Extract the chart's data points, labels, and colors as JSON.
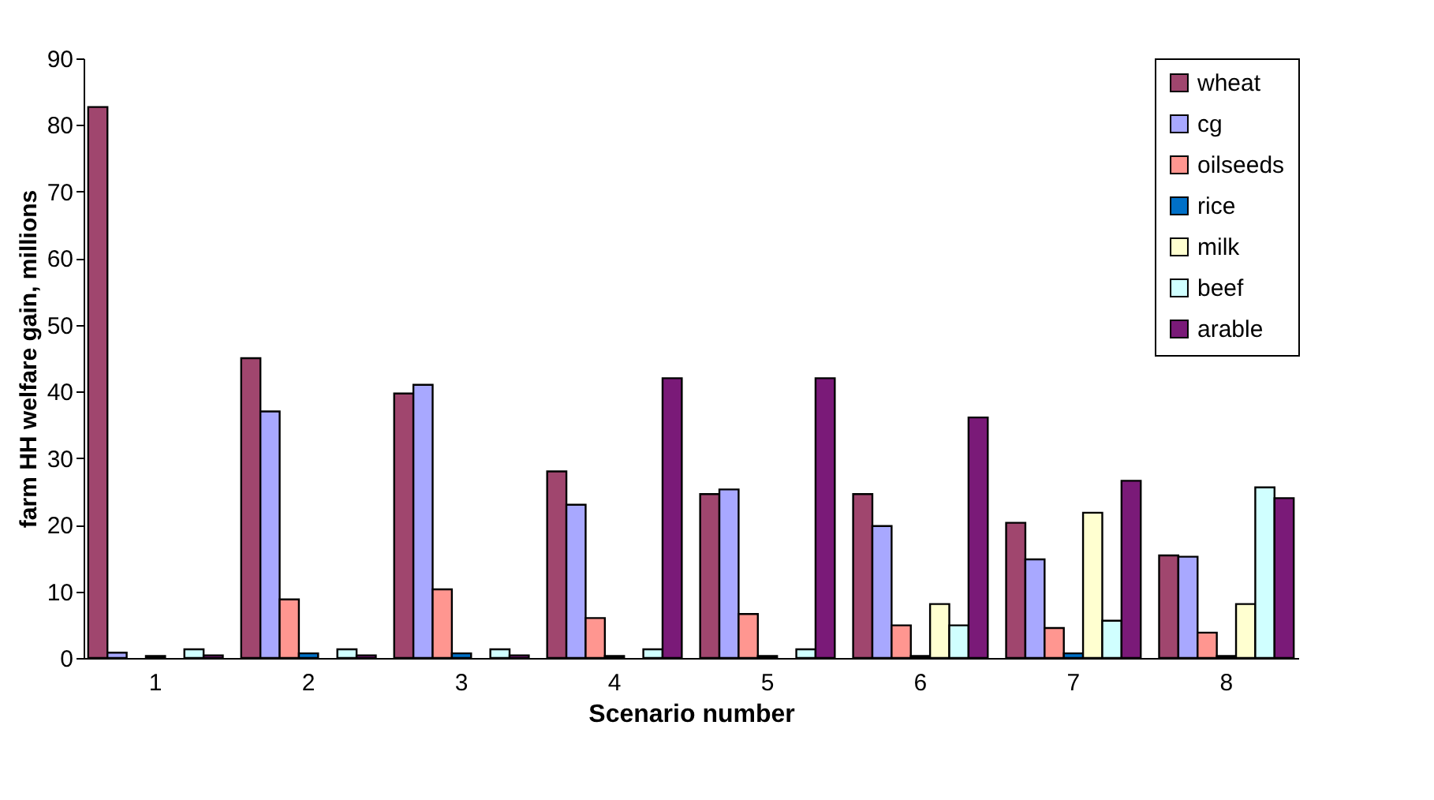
{
  "chart_data": {
    "type": "bar",
    "xlabel": "Scenario number",
    "ylabel": "farm HH welfare gain, millions",
    "categories": [
      "1",
      "2",
      "3",
      "4",
      "5",
      "6",
      "7",
      "8"
    ],
    "series": [
      {
        "name": "wheat",
        "color": "#a0466e",
        "values": [
          82.7,
          45,
          39.7,
          28,
          24.6,
          24.6,
          20.3,
          15.4
        ]
      },
      {
        "name": "cg",
        "color": "#a8a8ff",
        "values": [
          0.8,
          37,
          41,
          23,
          25.3,
          19.8,
          14.8,
          15.2
        ]
      },
      {
        "name": "oilseeds",
        "color": "#ff9690",
        "values": [
          null,
          8.8,
          10.3,
          6,
          6.6,
          4.9,
          4.5,
          3.8
        ]
      },
      {
        "name": "rice",
        "color": "#0070c8",
        "values": [
          0.3,
          0.7,
          0.7,
          0.3,
          0.3,
          0.3,
          0.7,
          0.3
        ]
      },
      {
        "name": "milk",
        "color": "#ffffd0",
        "values": [
          null,
          null,
          null,
          null,
          null,
          8.1,
          21.8,
          8.1
        ]
      },
      {
        "name": "beef",
        "color": "#d0ffff",
        "values": [
          1.3,
          1.3,
          1.3,
          1.3,
          1.3,
          4.9,
          5.6,
          25.6
        ]
      },
      {
        "name": "arable",
        "color": "#7a1a78",
        "values": [
          0.4,
          0.4,
          0.4,
          42,
          42,
          36.1,
          26.6,
          24
        ]
      }
    ],
    "ylim": [
      0,
      90
    ],
    "yticks": [
      0,
      10,
      20,
      30,
      40,
      50,
      60,
      70,
      80,
      90
    ],
    "grid": false,
    "legend": "top right"
  }
}
